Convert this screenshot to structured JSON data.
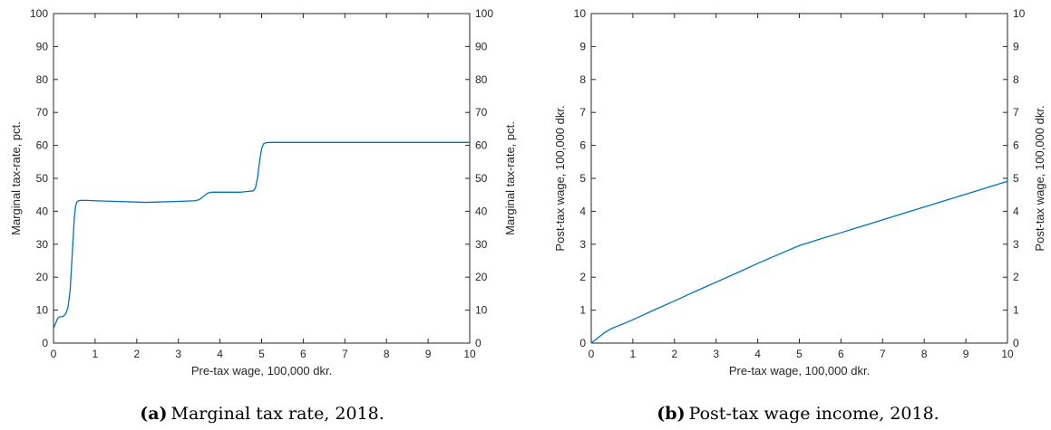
{
  "chart_data": [
    {
      "type": "line",
      "xlabel": "Pre-tax wage, 100,000 dkr.",
      "ylabel": "Marginal tax-rate, pct.",
      "ylabel_right": "Marginal tax-rate, pct.",
      "xlim": [
        0,
        10
      ],
      "ylim": [
        0,
        100
      ],
      "xticks": [
        0,
        1,
        2,
        3,
        4,
        5,
        6,
        7,
        8,
        9,
        10
      ],
      "yticks": [
        0,
        10,
        20,
        30,
        40,
        50,
        60,
        70,
        80,
        90,
        100
      ],
      "grid": false,
      "line_color": "#0072bd",
      "caption_label": "(a)",
      "caption_text": "Marginal tax rate, 2018.",
      "series": [
        {
          "x": [
            0,
            0.05,
            0.1,
            0.15,
            0.2,
            0.25,
            0.3,
            0.35,
            0.4,
            0.45,
            0.5,
            0.53,
            0.56,
            0.6,
            0.65,
            0.7,
            0.8,
            1.0,
            1.5,
            2.0,
            2.2,
            2.5,
            3.0,
            3.4,
            3.5,
            3.6,
            3.7,
            3.8,
            4.0,
            4.5,
            4.8,
            4.85,
            4.9,
            4.95,
            5.0,
            5.05,
            5.1,
            5.2,
            6,
            7,
            8,
            9,
            10
          ],
          "y": [
            4.5,
            6,
            7.5,
            8,
            8,
            8.3,
            9,
            11,
            16,
            27,
            38,
            41.5,
            42.8,
            43.2,
            43.3,
            43.3,
            43.3,
            43.2,
            43.0,
            42.8,
            42.7,
            42.8,
            43.0,
            43.2,
            43.5,
            44.5,
            45.5,
            45.8,
            45.8,
            45.8,
            46.2,
            47.0,
            50.0,
            55.0,
            59.0,
            60.5,
            60.8,
            60.9,
            60.9,
            60.9,
            60.9,
            60.9,
            60.9
          ]
        }
      ]
    },
    {
      "type": "line",
      "xlabel": "Pre-tax wage, 100,000 dkr.",
      "ylabel": "Post-tax wage, 100,000 dkr.",
      "ylabel_right": "Post-tax wage, 100,000 dkr.",
      "xlim": [
        0,
        10
      ],
      "ylim": [
        0,
        10
      ],
      "xticks": [
        0,
        1,
        2,
        3,
        4,
        5,
        6,
        7,
        8,
        9,
        10
      ],
      "yticks": [
        0,
        1,
        2,
        3,
        4,
        5,
        6,
        7,
        8,
        9,
        10
      ],
      "grid": false,
      "line_color": "#0072bd",
      "caption_label": "(b)",
      "caption_text": "Post-tax wage income, 2018.",
      "series": [
        {
          "x": [
            0,
            0.1,
            0.2,
            0.3,
            0.4,
            0.5,
            0.6,
            0.8,
            1.0,
            1.5,
            2.0,
            2.5,
            3.0,
            3.5,
            4.0,
            4.5,
            5.0,
            5.5,
            6.0,
            7.0,
            8.0,
            9.0,
            10.0
          ],
          "y": [
            0,
            0.1,
            0.2,
            0.3,
            0.38,
            0.45,
            0.5,
            0.6,
            0.71,
            1.0,
            1.28,
            1.57,
            1.85,
            2.13,
            2.42,
            2.69,
            2.96,
            3.16,
            3.35,
            3.74,
            4.13,
            4.52,
            4.91
          ]
        }
      ]
    }
  ]
}
